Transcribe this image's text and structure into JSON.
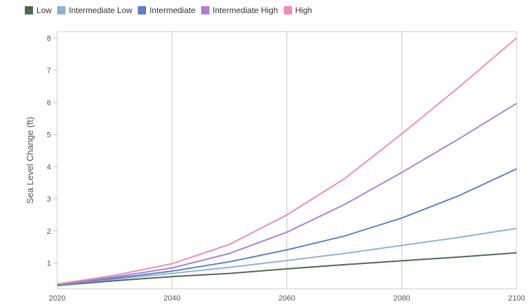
{
  "chart_data": {
    "type": "line",
    "title": "",
    "xlabel": "",
    "ylabel": "Sea Level Change (ft)",
    "xlim": [
      2020,
      2100
    ],
    "ylim": [
      0.2,
      8.2
    ],
    "x_ticks": [
      2020,
      2040,
      2060,
      2080,
      2100
    ],
    "y_ticks": [
      1,
      2,
      3,
      4,
      5,
      6,
      7,
      8
    ],
    "x": [
      2020,
      2030,
      2040,
      2050,
      2060,
      2070,
      2080,
      2090,
      2100
    ],
    "legend_position": "top-left",
    "series": [
      {
        "name": "Low",
        "color": "#4a6b4a",
        "values": [
          0.3,
          0.45,
          0.58,
          0.68,
          0.82,
          0.95,
          1.07,
          1.19,
          1.32
        ]
      },
      {
        "name": "Intermediate Low",
        "color": "#8ab4d0",
        "values": [
          0.32,
          0.5,
          0.68,
          0.87,
          1.08,
          1.3,
          1.55,
          1.8,
          2.08
        ]
      },
      {
        "name": "Intermediate",
        "color": "#5b7fcc",
        "values": [
          0.33,
          0.53,
          0.75,
          1.04,
          1.41,
          1.84,
          2.4,
          3.1,
          3.93
        ]
      },
      {
        "name": "Intermediate High",
        "color": "#b07ed0",
        "values": [
          0.34,
          0.57,
          0.85,
          1.3,
          1.96,
          2.82,
          3.82,
          4.87,
          5.97
        ]
      },
      {
        "name": "High",
        "color": "#f08bbb",
        "values": [
          0.35,
          0.62,
          0.98,
          1.58,
          2.5,
          3.62,
          5.02,
          6.48,
          8.0
        ]
      }
    ]
  }
}
